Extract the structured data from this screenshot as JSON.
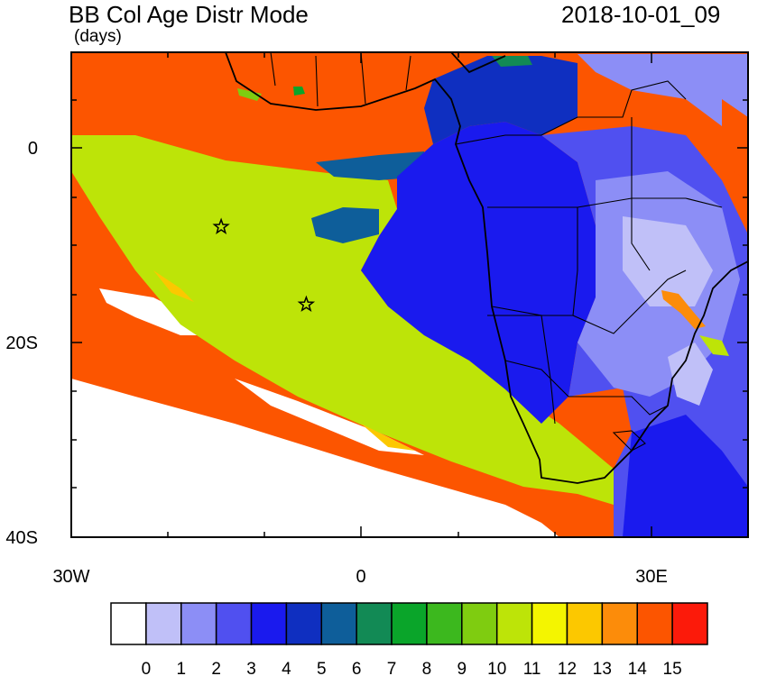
{
  "title": "BB Col Age Distr Mode",
  "units": "(days)",
  "timestamp": "2018-10-01_09",
  "lat_labels": [
    "0",
    "20S",
    "40S"
  ],
  "lon_labels": [
    "30W",
    "0",
    "30E"
  ],
  "colorbar": {
    "labels": [
      "0",
      "1",
      "2",
      "3",
      "4",
      "5",
      "6",
      "7",
      "8",
      "9",
      "10",
      "11",
      "12",
      "13",
      "14",
      "15"
    ],
    "colors": [
      "#ffffff",
      "#c0c0f8",
      "#8c8ef6",
      "#5050f0",
      "#1a1aee",
      "#0f2fc0",
      "#0e5e9a",
      "#128a55",
      "#0aa52a",
      "#3cb81e",
      "#7fcc10",
      "#bde408",
      "#f4f500",
      "#fcc800",
      "#fc8c0a",
      "#fc5500",
      "#fc1a0a"
    ]
  },
  "markers": [
    {
      "name": "star-marker-1",
      "lon": -14.5,
      "lat": -8
    },
    {
      "name": "star-marker-2",
      "lon": -5.7,
      "lat": -16
    }
  ]
}
